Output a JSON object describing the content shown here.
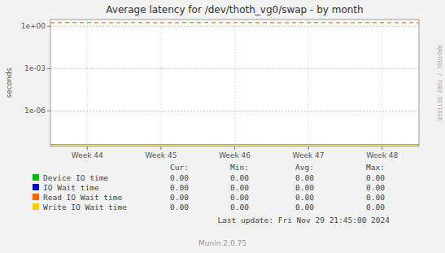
{
  "chart_data": {
    "type": "line",
    "title": "Average latency for /dev/thoth_vg0/swap - by month",
    "y_label": "seconds",
    "categories": [
      "Week 44",
      "Week 45",
      "Week 46",
      "Week 47",
      "Week 48"
    ],
    "log": "y",
    "ylim": [
      3e-09,
      3
    ],
    "yticks": [
      {
        "value": 1,
        "label": "1e+00"
      },
      {
        "value": 0.001,
        "label": "1e-03"
      },
      {
        "value": 1e-06,
        "label": "1e-06"
      }
    ],
    "grid": true,
    "hlines": [
      {
        "value": 1.8,
        "color": "#ff9900",
        "line_style": "dashed"
      },
      {
        "value": 4e-09,
        "color": "#ccaa00",
        "line_style": "solid"
      }
    ],
    "legend_table": {
      "headers": [
        "Cur:",
        "Min:",
        "Avg:",
        "Max:"
      ],
      "rows": [
        {
          "name": "Device IO time",
          "color": "#00bb00",
          "values": [
            "0.00",
            "0.00",
            "0.00",
            "0.00"
          ]
        },
        {
          "name": "IO Wait time",
          "color": "#0000cc",
          "values": [
            "0.00",
            "0.00",
            "0.00",
            "0.00"
          ]
        },
        {
          "name": "Read IO Wait time",
          "color": "#ff6600",
          "values": [
            "0.00",
            "0.00",
            "0.00",
            "0.00"
          ]
        },
        {
          "name": "Write IO Wait time",
          "color": "#ffcc00",
          "values": [
            "0.00",
            "0.00",
            "0.00",
            "0.00"
          ]
        }
      ]
    },
    "last_update": "Last update: Fri Nov 29 21:45:00 2024",
    "footer": "Munin 2.0.75",
    "watermark": "RRDTOOL / TOBI OETIKER"
  }
}
